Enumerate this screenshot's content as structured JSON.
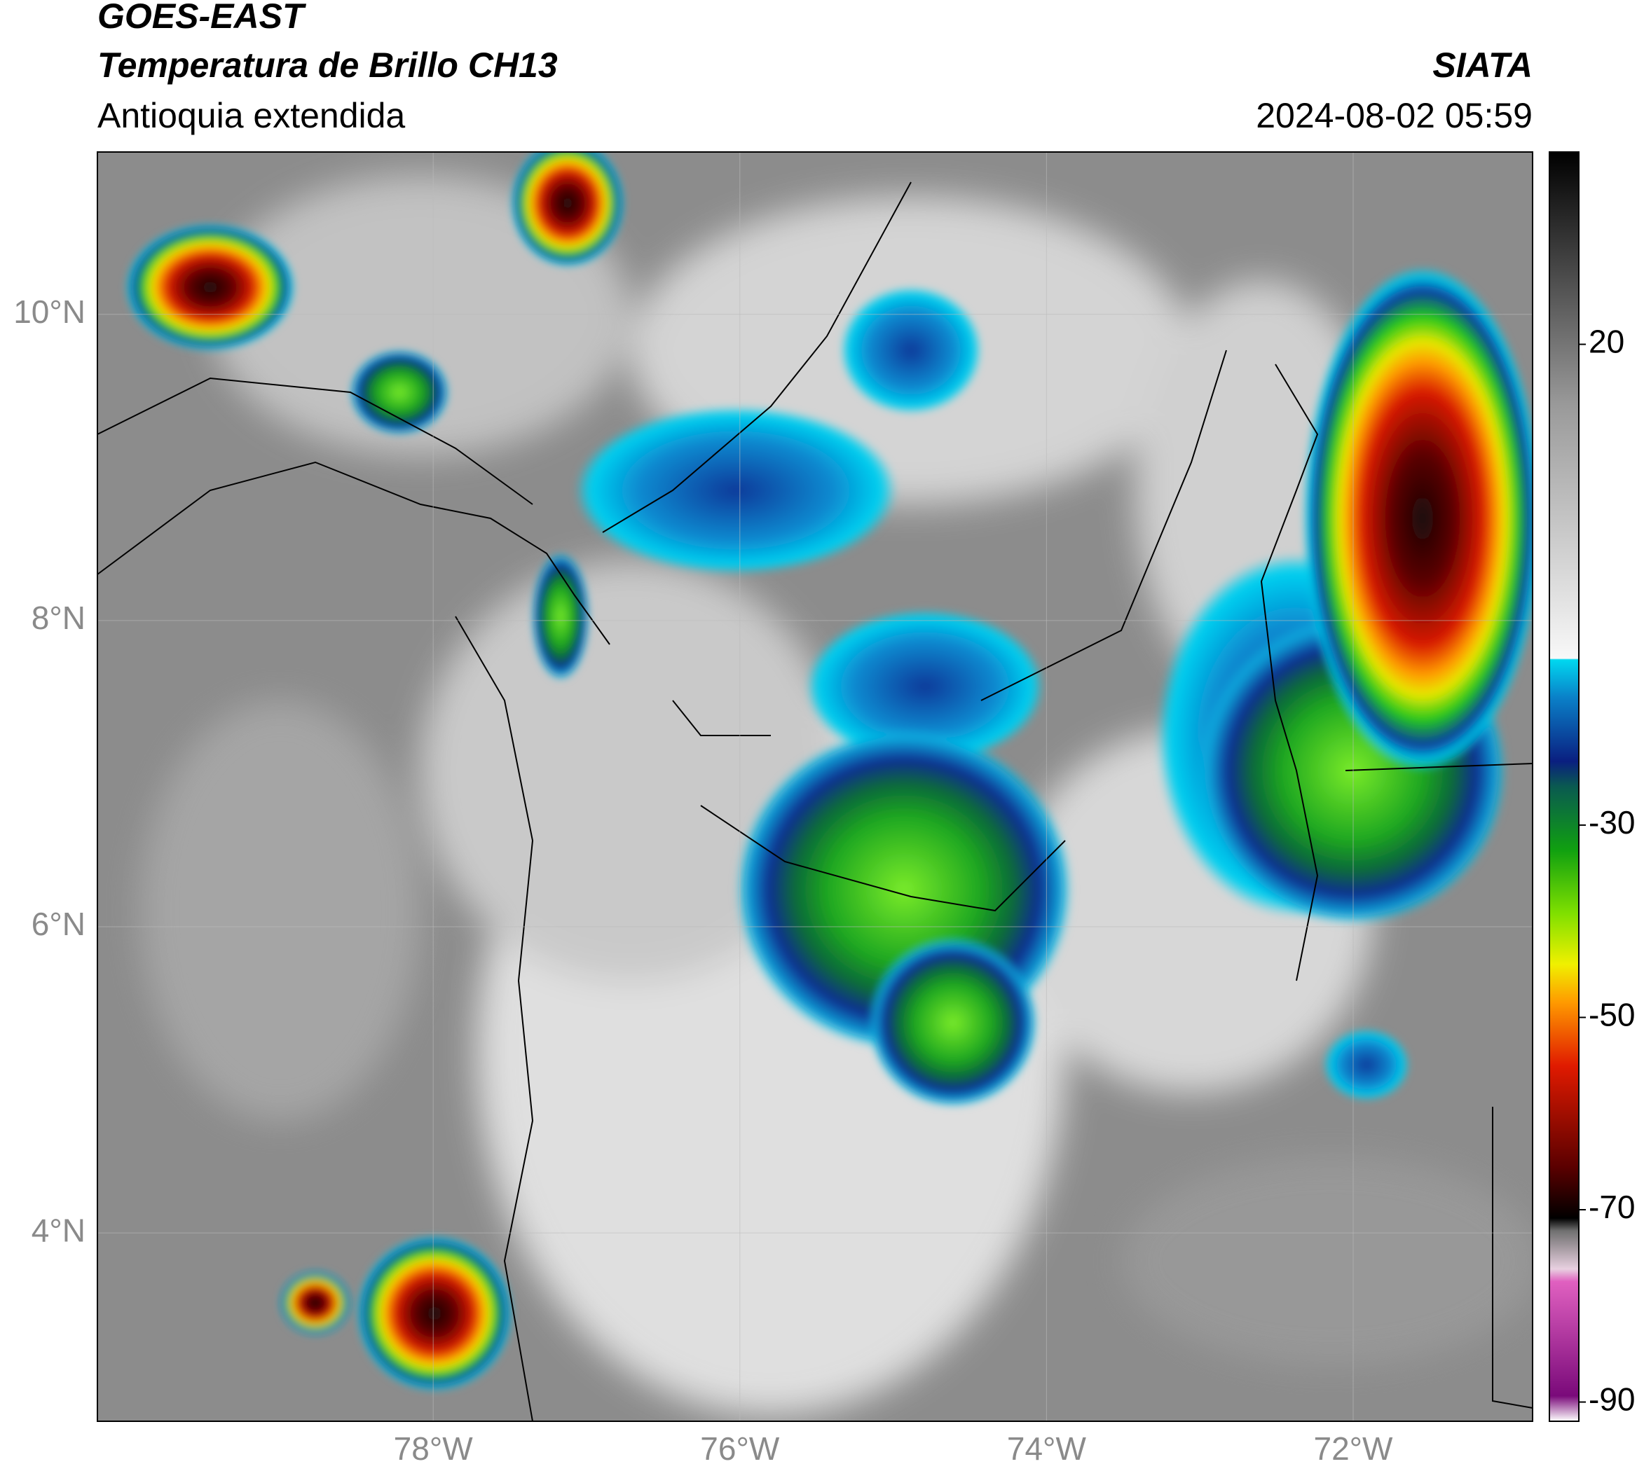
{
  "header": {
    "satellite": "GOES-EAST",
    "product": "Temperatura de Brillo CH13",
    "region": "Antioquia extendida",
    "source": "SIATA",
    "timestamp": "2024-08-02 05:59"
  },
  "map": {
    "xlim": [
      -80.19,
      -70.83
    ],
    "ylim": [
      2.77,
      11.06
    ],
    "xticks": [
      {
        "value": -78,
        "label": "78°W"
      },
      {
        "value": -76,
        "label": "76°W"
      },
      {
        "value": -74,
        "label": "74°W"
      },
      {
        "value": -72,
        "label": "72°W"
      }
    ],
    "yticks": [
      {
        "value": 10,
        "label": "10°N"
      },
      {
        "value": 8,
        "label": "8°N"
      },
      {
        "value": 6,
        "label": "6°N"
      },
      {
        "value": 4,
        "label": "4°N"
      }
    ],
    "grid": true
  },
  "colorbar": {
    "lim": [
      -92,
      40
    ],
    "ticks": [
      20,
      -30,
      -50,
      -70,
      -90
    ]
  }
}
